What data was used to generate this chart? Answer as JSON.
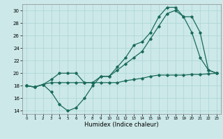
{
  "title": "",
  "xlabel": "Humidex (Indice chaleur)",
  "bg_color": "#cce8e8",
  "grid_color": "#aad4d4",
  "line_color": "#1a6b5a",
  "ylim": [
    13.5,
    31
  ],
  "xlim": [
    -0.5,
    23.5
  ],
  "yticks": [
    14,
    16,
    18,
    20,
    22,
    24,
    26,
    28,
    30
  ],
  "xticks": [
    0,
    1,
    2,
    3,
    4,
    5,
    6,
    7,
    8,
    9,
    10,
    11,
    12,
    13,
    14,
    15,
    16,
    17,
    18,
    19,
    20,
    21,
    22,
    23
  ],
  "line1": {
    "x": [
      0,
      1,
      2,
      3,
      4,
      5,
      6,
      7,
      8,
      9,
      10,
      11,
      12,
      13,
      14,
      15,
      16,
      17,
      18,
      19,
      20,
      21,
      22,
      23
    ],
    "y": [
      18,
      17.8,
      18.2,
      17,
      15,
      14,
      14.5,
      16,
      18,
      19.5,
      19.5,
      21,
      22.5,
      24.5,
      25,
      26.5,
      29,
      30.5,
      30.5,
      29,
      26.5,
      22.5,
      20.5,
      20
    ]
  },
  "line2": {
    "x": [
      0,
      1,
      2,
      3,
      4,
      5,
      6,
      7,
      8,
      9,
      10,
      11,
      12,
      13,
      14,
      15,
      16,
      17,
      18,
      19,
      20,
      21,
      22,
      23
    ],
    "y": [
      18,
      17.8,
      18.2,
      19,
      20,
      20,
      20,
      18.5,
      18.5,
      19.5,
      19.5,
      20.5,
      21.5,
      22.5,
      23.5,
      25.5,
      27.5,
      29.5,
      30,
      29,
      29,
      26.5,
      20.5,
      20
    ]
  },
  "line3": {
    "x": [
      0,
      1,
      2,
      3,
      4,
      5,
      6,
      7,
      8,
      9,
      10,
      11,
      12,
      13,
      14,
      15,
      16,
      17,
      18,
      19,
      20,
      21,
      22,
      23
    ],
    "y": [
      18,
      17.8,
      18.2,
      18.5,
      18.5,
      18.5,
      18.5,
      18.5,
      18.5,
      18.5,
      18.5,
      18.5,
      18.8,
      19,
      19.2,
      19.5,
      19.7,
      19.7,
      19.7,
      19.7,
      19.8,
      19.8,
      19.9,
      20
    ]
  }
}
